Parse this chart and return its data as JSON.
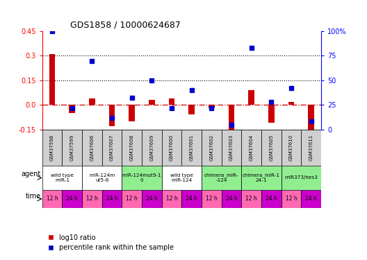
{
  "title": "GDS1858 / 10000624687",
  "samples": [
    "GSM37598",
    "GSM37599",
    "GSM37606",
    "GSM37607",
    "GSM37608",
    "GSM37609",
    "GSM37600",
    "GSM37601",
    "GSM37602",
    "GSM37603",
    "GSM37604",
    "GSM37605",
    "GSM37610",
    "GSM37611"
  ],
  "log10_ratio": [
    0.31,
    -0.05,
    0.04,
    -0.13,
    -0.1,
    0.03,
    0.04,
    -0.06,
    -0.02,
    -0.19,
    0.09,
    -0.11,
    0.02,
    -0.17
  ],
  "percentile_rank": [
    100,
    22,
    70,
    12,
    32,
    50,
    22,
    40,
    22,
    5,
    83,
    28,
    42,
    8
  ],
  "ylim_left": [
    -0.15,
    0.45
  ],
  "ylim_right": [
    0,
    100
  ],
  "yticks_left": [
    -0.15,
    0.0,
    0.15,
    0.3,
    0.45
  ],
  "yticks_right": [
    0,
    25,
    50,
    75,
    100
  ],
  "yticklabels_right": [
    "0",
    "25",
    "50",
    "75",
    "100%"
  ],
  "hlines": [
    0.15,
    0.3
  ],
  "agents": [
    {
      "label": "wild type\nmiR-1",
      "cols": [
        0,
        1
      ],
      "color": "#ffffff"
    },
    {
      "label": "miR-124m\nut5-6",
      "cols": [
        2,
        3
      ],
      "color": "#ffffff"
    },
    {
      "label": "miR-124mut9-1\n0",
      "cols": [
        4,
        5
      ],
      "color": "#90ee90"
    },
    {
      "label": "wild type\nmiR-124",
      "cols": [
        6,
        7
      ],
      "color": "#ffffff"
    },
    {
      "label": "chimera_miR-\n-124",
      "cols": [
        8,
        9
      ],
      "color": "#90ee90"
    },
    {
      "label": "chimera_miR-1\n24-1",
      "cols": [
        10,
        11
      ],
      "color": "#90ee90"
    },
    {
      "label": "miR373/hes3",
      "cols": [
        12,
        13
      ],
      "color": "#90ee90"
    }
  ],
  "times": [
    "12 h",
    "24 h",
    "12 h",
    "24 h",
    "12 h",
    "24 h",
    "12 h",
    "24 h",
    "12 h",
    "24 h",
    "12 h",
    "24 h",
    "12 h",
    "24 h"
  ],
  "bar_color_red": "#cc0000",
  "bar_color_blue": "#0000cc",
  "zero_line_color": "#cc0000",
  "dotted_line_color": "#000000",
  "title_color": "#000000",
  "label_agent": "agent",
  "label_time": "time",
  "legend_red": "log10 ratio",
  "legend_blue": "percentile rank within the sample",
  "sample_bg": "#d0d0d0",
  "time_color_12": "#ff69b4",
  "time_color_24": "#cc00cc"
}
